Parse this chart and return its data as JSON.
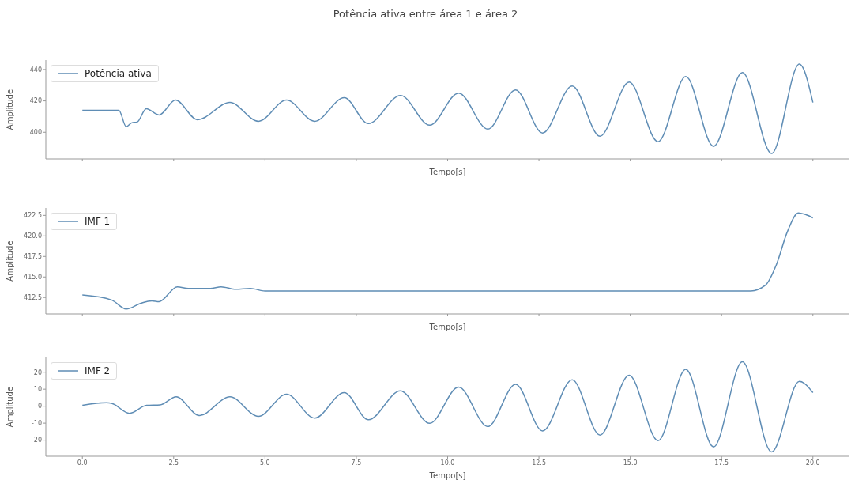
{
  "chart_data": [
    {
      "type": "line",
      "title": "Potência ativa entre área 1 e área 2",
      "xlabel": "Tempo[s]",
      "ylabel": "Amplitude",
      "legend": "top left",
      "tick_labels": "y",
      "xlim": [
        -1,
        21
      ],
      "xticks": [
        {
          "value": 0,
          "label": null
        },
        {
          "value": 2.5,
          "label": null
        },
        {
          "value": 5,
          "label": null
        },
        {
          "value": 7.5,
          "label": null
        },
        {
          "value": 10,
          "label": null
        },
        {
          "value": 12.5,
          "label": null
        },
        {
          "value": 15,
          "label": null
        },
        {
          "value": 17.5,
          "label": null
        },
        {
          "value": 20,
          "label": null
        }
      ],
      "ylim": [
        383,
        446
      ],
      "yticks": [
        400,
        420,
        440
      ],
      "x": [
        0,
        1.0,
        1.2,
        1.35,
        1.5,
        1.75,
        2.1,
        2.55,
        3.15,
        4.04,
        4.82,
        5.59,
        6.36,
        7.17,
        7.83,
        8.71,
        9.51,
        10.3,
        11.1,
        11.86,
        12.6,
        13.41,
        14.17,
        14.97,
        15.76,
        16.52,
        17.28,
        18.07,
        18.87,
        19.63,
        20
      ],
      "series": [
        {
          "name": "Potência ativa",
          "color": "#5f8db5",
          "values": [
            414,
            414,
            403.5,
            406,
            406.5,
            415,
            411,
            420.5,
            408,
            419,
            407,
            420.5,
            407,
            422,
            405.5,
            423.5,
            404.5,
            425,
            402,
            427,
            399.5,
            429.5,
            397.5,
            432,
            394,
            435.5,
            391,
            438,
            386.5,
            443.5,
            419
          ]
        }
      ]
    },
    {
      "type": "line",
      "xlabel": "Tempo[s]",
      "ylabel": "Amplitude",
      "legend": "top left",
      "tick_labels": "y",
      "xlim": [
        -1,
        21
      ],
      "xticks": [
        {
          "value": 0,
          "label": null
        },
        {
          "value": 2.5,
          "label": null
        },
        {
          "value": 5,
          "label": null
        },
        {
          "value": 7.5,
          "label": null
        },
        {
          "value": 10,
          "label": null
        },
        {
          "value": 12.5,
          "label": null
        },
        {
          "value": 15,
          "label": null
        },
        {
          "value": 17.5,
          "label": null
        },
        {
          "value": 20,
          "label": null
        }
      ],
      "ylim": [
        410.5,
        423.4
      ],
      "yticks": [
        {
          "value": 412.5,
          "label": "412.5"
        },
        {
          "value": 415,
          "label": "415.0"
        },
        {
          "value": 417.5,
          "label": "417.5"
        },
        {
          "value": 420,
          "label": "420.0"
        },
        {
          "value": 422.5,
          "label": "422.5"
        }
      ],
      "x": [
        0,
        0.8,
        1.2,
        1.6,
        1.9,
        2.1,
        2.6,
        2.9,
        3.5,
        3.8,
        4.2,
        4.6,
        5.0,
        8,
        12,
        16,
        18.3,
        18.7,
        19.0,
        19.3,
        19.6,
        19.8,
        20
      ],
      "series": [
        {
          "name": "IMF 1",
          "color": "#5f8db5",
          "values": [
            412.8,
            412.2,
            411.1,
            411.8,
            412.1,
            412.0,
            413.8,
            413.6,
            413.6,
            413.8,
            413.5,
            413.6,
            413.3,
            413.3,
            413.3,
            413.3,
            413.3,
            414.0,
            416.5,
            420.5,
            422.8,
            422.6,
            422.2
          ]
        }
      ]
    },
    {
      "type": "line",
      "xlabel": "Tempo[s]",
      "ylabel": "Amplitude",
      "legend": "top left",
      "xlim": [
        -1,
        21
      ],
      "xticks": [
        {
          "value": 0,
          "label": "0.0"
        },
        {
          "value": 2.5,
          "label": "2.5"
        },
        {
          "value": 5,
          "label": "5.0"
        },
        {
          "value": 7.5,
          "label": "7.5"
        },
        {
          "value": 10,
          "label": "10.0"
        },
        {
          "value": 12.5,
          "label": "12.5"
        },
        {
          "value": 15,
          "label": "15.0"
        },
        {
          "value": 17.5,
          "label": "17.5"
        },
        {
          "value": 20,
          "label": "20.0"
        }
      ],
      "ylim": [
        -29.5,
        28.7
      ],
      "yticks": [
        -20,
        -10,
        0,
        10,
        20
      ],
      "x": [
        0,
        0.66,
        0.8,
        1.29,
        1.76,
        2.13,
        2.57,
        3.2,
        4.04,
        4.82,
        5.59,
        6.36,
        7.17,
        7.83,
        8.71,
        9.51,
        10.3,
        11.1,
        11.86,
        12.6,
        13.41,
        14.17,
        14.97,
        15.76,
        16.52,
        17.28,
        18.07,
        18.87,
        19.63,
        20
      ],
      "series": [
        {
          "name": "IMF 2",
          "color": "#5f8db5",
          "values": [
            0.5,
            2,
            1.7,
            -4.2,
            0.5,
            0.8,
            5.5,
            -5.5,
            5.5,
            -6,
            7,
            -7,
            8,
            -8,
            9,
            -10.1,
            11.2,
            -12,
            12.9,
            -14.6,
            15.5,
            -17,
            18.2,
            -20.3,
            21.7,
            -24,
            26.1,
            -26.9,
            14.6,
            8
          ]
        }
      ]
    }
  ]
}
